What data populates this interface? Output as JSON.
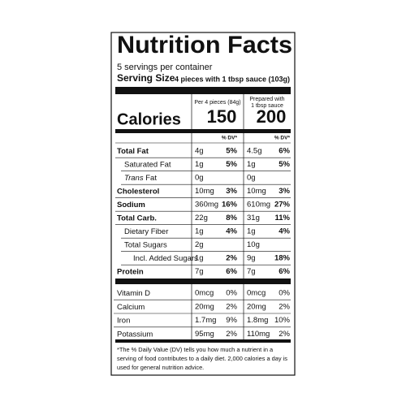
{
  "title": "Nutrition Facts",
  "servings": "5 servings per container",
  "serving_size": {
    "label": "Serving Size",
    "value": "4 pieces with 1 tbsp sauce (103g)"
  },
  "calories_label": "Calories",
  "columns": [
    {
      "header": [
        "Per 4 pieces (84g)"
      ],
      "calories": "150",
      "dv_header": "% DV*"
    },
    {
      "header": [
        "Prepared with",
        "1 tbsp sauce"
      ],
      "calories": "200",
      "dv_header": "% DV*"
    }
  ],
  "rows": [
    {
      "label": "Total Fat",
      "style": "bold",
      "values": [
        "4g",
        "5%",
        "4.5g",
        "6%"
      ]
    },
    {
      "label": "Saturated Fat",
      "style": "indent",
      "values": [
        "1g",
        "5%",
        "1g",
        "5%"
      ]
    },
    {
      "label_prefix": "Trans",
      "label": "Fat",
      "style": "indent",
      "values": [
        "0g",
        null,
        "0g",
        null
      ]
    },
    {
      "label": "Cholesterol",
      "style": "bold",
      "values": [
        "10mg",
        "3%",
        "10mg",
        "3%"
      ]
    },
    {
      "label": "Sodium",
      "style": "bold",
      "values": [
        "360mg",
        "16%",
        "610mg",
        "27%"
      ]
    },
    {
      "label": "Total Carb.",
      "style": "bold",
      "values": [
        "22g",
        "8%",
        "31g",
        "11%"
      ]
    },
    {
      "label": "Dietary Fiber",
      "style": "indent",
      "values": [
        "1g",
        "4%",
        "1g",
        "4%"
      ]
    },
    {
      "label": "Total Sugars",
      "style": "indent",
      "values": [
        "2g",
        null,
        "10g",
        null
      ]
    },
    {
      "label": "Incl. Added Sugars",
      "style": "indent2",
      "values": [
        "1g",
        "2%",
        "9g",
        "18%"
      ]
    },
    {
      "label": "Protein",
      "style": "bold",
      "values": [
        "7g",
        "6%",
        "7g",
        "6%"
      ]
    }
  ],
  "vitamins": [
    {
      "label": "Vitamin D",
      "values": [
        "0mcg",
        "0%",
        "0mcg",
        "0%"
      ]
    },
    {
      "label": "Calcium",
      "values": [
        "20mg",
        "2%",
        "20mg",
        "2%"
      ]
    },
    {
      "label": "Iron",
      "values": [
        "1.7mg",
        "9%",
        "1.8mg",
        "10%"
      ]
    },
    {
      "label": "Potassium",
      "values": [
        "95mg",
        "2%",
        "110mg",
        "2%"
      ]
    }
  ],
  "footnote": [
    "*The % Daily Value (DV) tells you how much a nutrient in a",
    "serving of food contributes to a daily diet. 2,000 calories a day is",
    "used for general nutrition advice."
  ]
}
